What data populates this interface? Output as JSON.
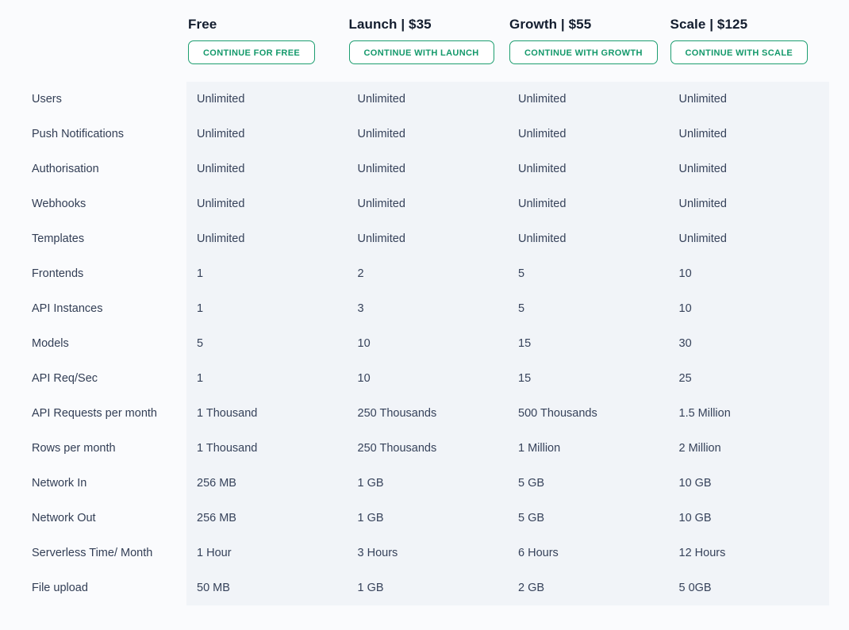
{
  "page": {
    "background": "#fafbfd",
    "panel_background": "#f1f4f8"
  },
  "colors": {
    "accent_green": "#14996b",
    "heading_text": "#131d2e",
    "label_text": "#323e55",
    "value_text": "#36425a"
  },
  "plans": [
    {
      "name": "Free",
      "cta": "CONTINUE FOR FREE"
    },
    {
      "name": "Launch | $35",
      "cta": "CONTINUE WITH LAUNCH"
    },
    {
      "name": "Growth | $55",
      "cta": "CONTINUE WITH GROWTH"
    },
    {
      "name": "Scale | $125",
      "cta": "CONTINUE WITH SCALE"
    }
  ],
  "features": [
    {
      "label": "Users",
      "values": [
        "Unlimited",
        "Unlimited",
        "Unlimited",
        "Unlimited"
      ]
    },
    {
      "label": "Push Notifications",
      "values": [
        "Unlimited",
        "Unlimited",
        "Unlimited",
        "Unlimited"
      ]
    },
    {
      "label": "Authorisation",
      "values": [
        "Unlimited",
        "Unlimited",
        "Unlimited",
        "Unlimited"
      ]
    },
    {
      "label": "Webhooks",
      "values": [
        "Unlimited",
        "Unlimited",
        "Unlimited",
        "Unlimited"
      ]
    },
    {
      "label": "Templates",
      "values": [
        "Unlimited",
        "Unlimited",
        "Unlimited",
        "Unlimited"
      ]
    },
    {
      "label": "Frontends",
      "values": [
        "1",
        "2",
        "5",
        "10"
      ]
    },
    {
      "label": "API Instances",
      "values": [
        "1",
        "3",
        "5",
        "10"
      ]
    },
    {
      "label": "Models",
      "values": [
        "5",
        "10",
        "15",
        "30"
      ]
    },
    {
      "label": "API Req/Sec",
      "values": [
        "1",
        "10",
        "15",
        "25"
      ]
    },
    {
      "label": "API Requests per month",
      "values": [
        "1 Thousand",
        "250 Thousands",
        "500 Thousands",
        "1.5 Million"
      ]
    },
    {
      "label": "Rows per month",
      "values": [
        "1 Thousand",
        "250 Thousands",
        "1 Million",
        "2 Million"
      ]
    },
    {
      "label": "Network In",
      "values": [
        "256 MB",
        "1 GB",
        "5 GB",
        "10 GB"
      ]
    },
    {
      "label": "Network Out",
      "values": [
        "256 MB",
        "1 GB",
        "5 GB",
        "10 GB"
      ]
    },
    {
      "label": "Serverless Time/ Month",
      "values": [
        "1 Hour",
        "3 Hours",
        "6 Hours",
        "12 Hours"
      ]
    },
    {
      "label": "File upload",
      "values": [
        "50 MB",
        "1 GB",
        "2 GB",
        "5 0GB"
      ]
    }
  ]
}
